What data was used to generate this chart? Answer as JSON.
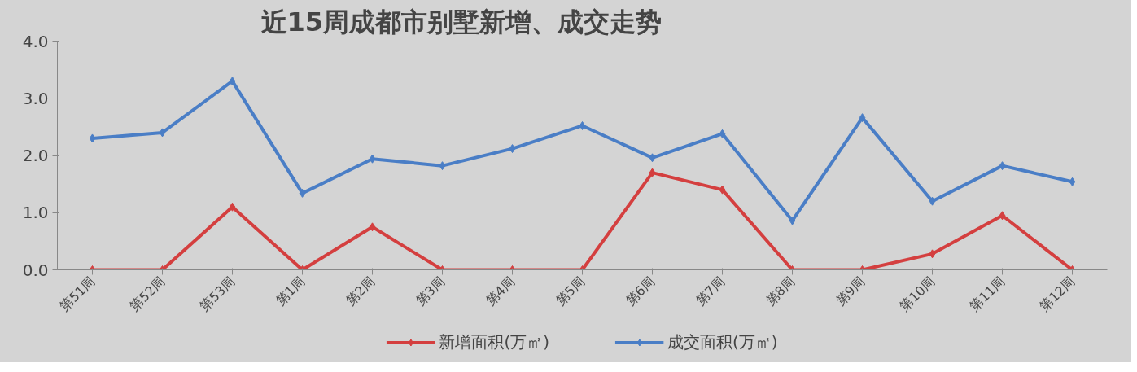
{
  "chart_data": {
    "type": "line",
    "title": "近15周成都市别墅新增、成交走势",
    "categories": [
      "第51周",
      "第52周",
      "第53周",
      "第1周",
      "第2周",
      "第3周",
      "第4周",
      "第5周",
      "第6周",
      "第7周",
      "第8周",
      "第9周",
      "第10周",
      "第11周",
      "第12周"
    ],
    "series": [
      {
        "name": "新增面积(万㎡)",
        "color": "#d43f3f",
        "values": [
          0,
          0,
          1.1,
          0,
          0.75,
          0,
          0,
          0,
          1.7,
          1.4,
          0,
          0,
          0.28,
          0.95,
          0
        ]
      },
      {
        "name": "成交面积(万㎡)",
        "color": "#4a7ec6",
        "values": [
          2.3,
          2.4,
          3.3,
          1.34,
          1.94,
          1.82,
          2.12,
          2.52,
          1.96,
          2.38,
          0.86,
          2.66,
          1.2,
          1.82,
          1.54
        ]
      }
    ],
    "ylim": [
      0,
      4
    ],
    "yticks": [
      {
        "value": 0,
        "label": "0.0"
      },
      {
        "value": 1,
        "label": "1.0"
      },
      {
        "value": 2,
        "label": "2.0"
      },
      {
        "value": 3,
        "label": "3.0"
      },
      {
        "value": 4,
        "label": "4.0"
      }
    ],
    "grid": false,
    "legend": "bottom",
    "marker": "diamond",
    "line_style": "solid"
  }
}
